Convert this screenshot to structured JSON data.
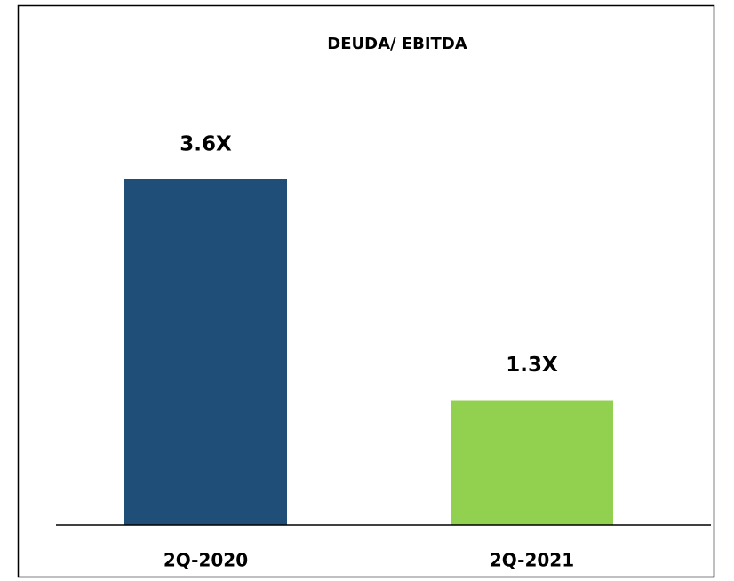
{
  "chart_data": {
    "type": "bar",
    "title": "DEUDA/ EBITDA",
    "categories": [
      "2Q-2020",
      "2Q-2021"
    ],
    "values": [
      3.6,
      1.3
    ],
    "value_labels": [
      "3.6X",
      "1.3X"
    ],
    "colors": [
      "#1f4e79",
      "#92d050"
    ]
  }
}
